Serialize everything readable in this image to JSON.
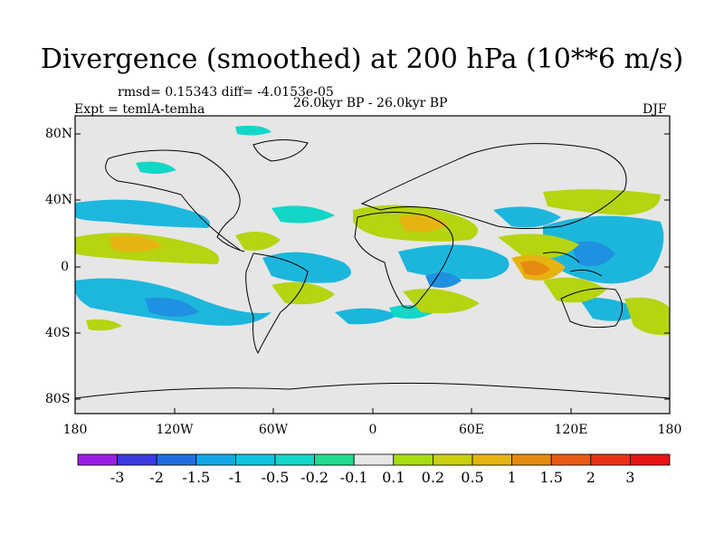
{
  "title": "Divergence (smoothed) at 200 hPa (10**6 m/s)",
  "stats": "rmsd= 0.15343 diff= -4.0153e-05",
  "expt": "Expt = temlA-temha",
  "period": "26.0kyr BP - 26.0kyr BP",
  "season": "DJF",
  "y_axis_labels": [
    "80N",
    "40N",
    "0",
    "40S",
    "80S"
  ],
  "x_axis_labels": [
    "180",
    "120W",
    "60W",
    "0",
    "60E",
    "120E",
    "180"
  ],
  "colorbar": {
    "labels": [
      "-3",
      "-2",
      "-1.5",
      "-1",
      "-0.5",
      "-0.2",
      "-0.1",
      "0.1",
      "0.2",
      "0.5",
      "1",
      "1.5",
      "2",
      "3"
    ],
    "colors": [
      "#9b1ee6",
      "#3a3ae0",
      "#1e6ee0",
      "#12a6e6",
      "#10c4e0",
      "#12d6c6",
      "#20dc8e",
      "#e6e6e6",
      "#a6de10",
      "#c8d010",
      "#e6b410",
      "#e68a10",
      "#e85a14",
      "#e63214",
      "#e61414"
    ]
  }
}
